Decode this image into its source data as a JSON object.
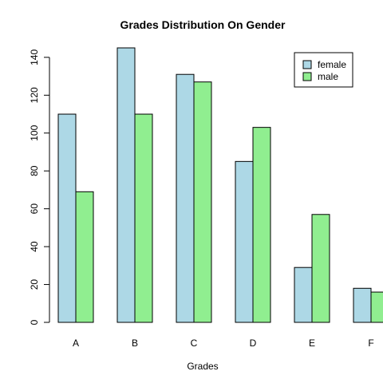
{
  "chart_data": {
    "type": "bar",
    "title": "Grades Distribution On Gender",
    "xlabel": "Grades",
    "ylabel": "",
    "categories": [
      "A",
      "B",
      "C",
      "D",
      "E",
      "F"
    ],
    "series": [
      {
        "name": "female",
        "values": [
          110,
          145,
          131,
          85,
          29,
          18
        ],
        "color": "#add8e6"
      },
      {
        "name": "male",
        "values": [
          69,
          110,
          127,
          103,
          57,
          16
        ],
        "color": "#90ee90"
      }
    ],
    "ylim": [
      0,
      145
    ],
    "yticks": [
      0,
      20,
      40,
      60,
      80,
      100,
      120,
      140
    ],
    "grid": false,
    "legend_position": "top-right"
  }
}
